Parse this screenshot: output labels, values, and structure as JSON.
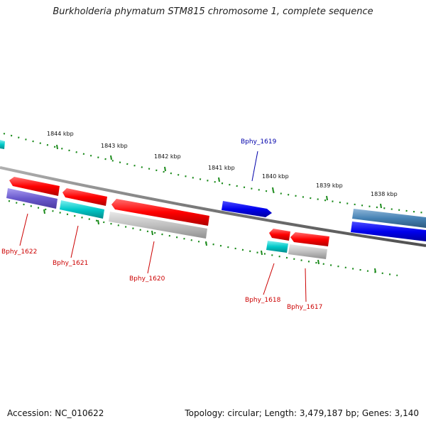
{
  "header": {
    "title": "Burkholderia phymatum STM815 chromosome 1, complete sequence"
  },
  "footer": {
    "accession": "Accession: NC_010622",
    "info": "Topology: circular; Length: 3,479,187 bp; Genes: 3,140"
  },
  "scale": {
    "ticks": [
      "1844 kbp",
      "1843 kbp",
      "1842 kbp",
      "1841 kbp",
      "1840 kbp",
      "1839 kbp",
      "1838 kbp"
    ]
  },
  "genes": {
    "labels": [
      "Bphy_1622",
      "Bphy_1621",
      "Bphy_1620",
      "Bphy_1619",
      "Bphy_1618",
      "Bphy_1617"
    ]
  },
  "colors": {
    "backbone": "#7a7a7a",
    "tick_marks": "#1a8a1a",
    "feature_red": "#ff0000",
    "feature_blue": "#0000ee",
    "feature_cyan": "#00c8c8",
    "feature_purple": "#6a5acd",
    "feature_steelblue": "#4682b4",
    "feature_gray": "#c0c0c0",
    "label_red": "#cc0000",
    "label_blue": "#0000aa"
  }
}
